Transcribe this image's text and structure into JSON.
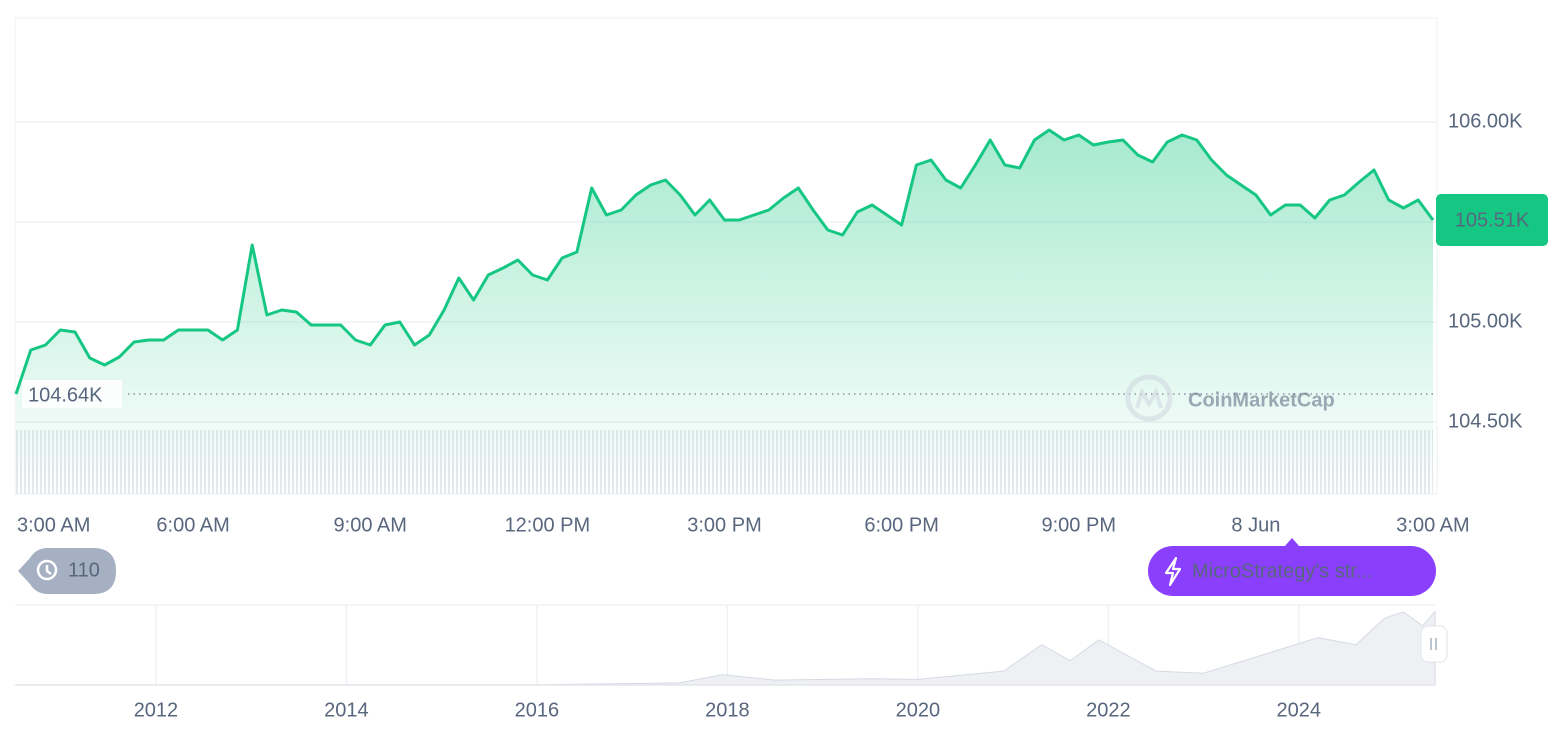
{
  "chart_data": [
    {
      "type": "line",
      "color": "#16c784",
      "x": [
        0,
        0.25,
        0.5,
        0.75,
        1,
        1.25,
        1.5,
        1.75,
        2,
        2.25,
        2.5,
        2.75,
        3,
        3.25,
        3.5,
        3.75,
        4,
        4.25,
        4.5,
        4.75,
        5,
        5.25,
        5.5,
        5.75,
        6,
        6.25,
        6.5,
        6.75,
        7,
        7.25,
        7.5,
        7.75,
        8,
        8.25,
        8.5,
        8.75,
        9,
        9.25,
        9.5,
        9.75,
        10,
        10.25,
        10.5,
        10.75,
        11,
        11.25,
        11.5,
        11.75,
        12,
        12.25,
        12.5,
        12.75,
        13,
        13.25,
        13.5,
        13.75,
        14,
        14.25,
        14.5,
        14.75,
        15,
        15.25,
        15.5,
        15.75,
        16,
        16.25,
        16.5,
        16.75,
        17,
        17.25,
        17.5,
        17.75,
        18,
        18.25,
        18.5,
        18.75,
        19,
        19.25,
        19.5,
        19.75,
        20,
        20.25,
        20.5,
        20.75,
        21,
        21.25,
        21.5,
        21.75,
        22,
        22.25,
        22.5,
        22.75,
        23,
        23.25,
        23.5,
        23.75,
        24
      ],
      "values": [
        104.64,
        104.86,
        104.885,
        104.96,
        104.95,
        104.82,
        104.785,
        104.825,
        104.9,
        104.91,
        104.91,
        104.96,
        104.96,
        104.96,
        104.91,
        104.96,
        105.385,
        105.035,
        105.06,
        105.05,
        104.985,
        104.985,
        104.985,
        104.91,
        104.885,
        104.985,
        105.0,
        104.885,
        104.935,
        105.06,
        105.22,
        105.11,
        105.235,
        105.27,
        105.31,
        105.235,
        105.21,
        105.32,
        105.35,
        105.67,
        105.535,
        105.56,
        105.635,
        105.685,
        105.71,
        105.635,
        105.535,
        105.61,
        105.51,
        105.51,
        105.535,
        105.56,
        105.62,
        105.67,
        105.56,
        105.46,
        105.435,
        105.55,
        105.585,
        105.535,
        105.485,
        105.785,
        105.81,
        105.71,
        105.67,
        105.785,
        105.91,
        105.785,
        105.77,
        105.91,
        105.96,
        105.91,
        105.935,
        105.885,
        105.9,
        105.91,
        105.835,
        105.8,
        105.9,
        105.935,
        105.91,
        105.81,
        105.735,
        105.685,
        105.635,
        105.535,
        105.585,
        105.585,
        105.52,
        105.61,
        105.635,
        105.7,
        105.76,
        105.61,
        105.57,
        105.61,
        105.51
      ],
      "xlim": [
        0,
        24
      ],
      "xticks": [
        {
          "value": 0,
          "label": "3:00 AM"
        },
        {
          "value": 3,
          "label": "6:00 AM"
        },
        {
          "value": 6,
          "label": "9:00 AM"
        },
        {
          "value": 9,
          "label": "12:00 PM"
        },
        {
          "value": 12,
          "label": "3:00 PM"
        },
        {
          "value": 15,
          "label": "6:00 PM"
        },
        {
          "value": 18,
          "label": "9:00 PM"
        },
        {
          "value": 21,
          "label": "8 Jun"
        },
        {
          "value": 24,
          "label": "3:00 AM"
        }
      ],
      "ylim": [
        104.5,
        106.52
      ],
      "yticks": [
        {
          "value": 104.5,
          "label": "104.50K"
        },
        {
          "value": 105,
          "label": "105.00K"
        },
        {
          "value": 105.5,
          "label": null
        },
        {
          "value": 106,
          "label": "106.00K"
        }
      ],
      "grid": true,
      "reference_line": {
        "value": 104.64,
        "label": "104.64K"
      },
      "last_price": {
        "value": 105.51,
        "label": "105.51K"
      },
      "event_count": 110,
      "event": "MicroStrategy's str...",
      "watermark": "CoinMarketCap"
    },
    {
      "type": "area",
      "color": "#d5dae2",
      "x": [
        2010.52,
        2013,
        2016,
        2017.5,
        2017.95,
        2018.5,
        2019.5,
        2020,
        2020.9,
        2021.3,
        2021.6,
        2021.9,
        2022.5,
        2023,
        2024.2,
        2024.6,
        2024.9,
        2025.1,
        2025.3,
        2025.43
      ],
      "values": [
        0,
        0,
        0.5,
        3,
        15,
        7,
        9,
        8,
        20,
        58,
        35,
        65,
        20,
        17,
        68,
        58,
        96,
        105,
        85,
        106
      ],
      "xlim": [
        2010.52,
        2025.43
      ],
      "xticks": [
        2012,
        2014,
        2016,
        2018,
        2020,
        2022,
        2024
      ],
      "ylim": [
        0,
        115
      ]
    }
  ]
}
